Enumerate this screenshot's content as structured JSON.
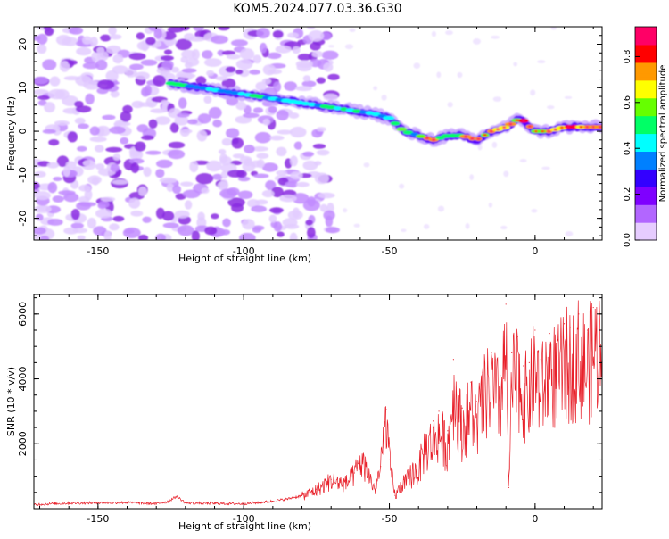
{
  "title": "KOM5.2024.077.03.36.G30",
  "chart_data": [
    {
      "type": "heatmap",
      "xlabel": "Height of straight line (km)",
      "ylabel": "Frequency (Hz)",
      "xlim": [
        -172,
        23
      ],
      "ylim": [
        -25,
        24
      ],
      "xticks": [
        -150,
        -100,
        -50,
        0
      ],
      "yticks": [
        -20,
        -10,
        0,
        10,
        20
      ],
      "xtick_labels": [
        "-150",
        "-100",
        "-50",
        "0"
      ],
      "ytick_labels": [
        "-20",
        "-10",
        "0",
        "10",
        "20"
      ],
      "colorbar": {
        "label": "Normalized spectral amplitude",
        "range": [
          0.0,
          0.93
        ],
        "ticks": [
          0.0,
          0.2,
          0.4,
          0.6,
          0.8
        ],
        "tick_labels": [
          "0.0",
          "0.2",
          "0.4",
          "0.6",
          "0.8"
        ],
        "colors": [
          "#ffffff",
          "#e6ccff",
          "#b266ff",
          "#7f00ff",
          "#3300ff",
          "#0080ff",
          "#00ffff",
          "#00ff66",
          "#66ff00",
          "#ffff00",
          "#ff9900",
          "#ff0000",
          "#ff0066"
        ]
      },
      "ridge": {
        "height_km": [
          -125,
          -115,
          -105,
          -95,
          -85,
          -75,
          -65,
          -55,
          -50,
          -45,
          -40,
          -35,
          -30,
          -25,
          -20,
          -15,
          -10,
          -5,
          0,
          5,
          10,
          15,
          20,
          23
        ],
        "frequency_hz": [
          11,
          10,
          9,
          8,
          7,
          6,
          5,
          4,
          3,
          0,
          -1,
          -2,
          -1,
          -1,
          -2,
          0,
          1,
          3,
          0,
          0,
          1,
          1,
          1,
          1
        ],
        "amplitude": [
          0.5,
          0.45,
          0.45,
          0.5,
          0.45,
          0.5,
          0.55,
          0.45,
          0.5,
          0.6,
          0.5,
          0.85,
          0.55,
          0.7,
          0.75,
          0.85,
          0.75,
          0.8,
          0.85,
          0.8,
          0.8,
          0.9,
          0.85,
          0.8
        ]
      },
      "noise_region_km": [
        -172,
        -75
      ]
    },
    {
      "type": "line",
      "xlabel": "Height of straight line (km)",
      "ylabel": "SNR (10 * v/v)",
      "xlim": [
        -172,
        23
      ],
      "ylim": [
        0,
        6600
      ],
      "xticks": [
        -150,
        -100,
        -50,
        0
      ],
      "yticks": [
        2000,
        4000,
        6000
      ],
      "xtick_labels": [
        "-150",
        "-100",
        "-50",
        "0"
      ],
      "ytick_labels": [
        "2000",
        "4000",
        "6000"
      ],
      "color": "#e8202a",
      "series": [
        {
          "x": [
            -172,
            -160,
            -150,
            -140,
            -130,
            -126,
            -123,
            -120,
            -110,
            -100,
            -90,
            -85,
            -80,
            -75,
            -70,
            -65,
            -62,
            -60,
            -58,
            -55,
            -53,
            -52,
            -51,
            -50,
            -48,
            -45,
            -42,
            -40,
            -38,
            -35,
            -33,
            -30,
            -28,
            -25,
            -22,
            -20,
            -18,
            -15,
            -12,
            -10,
            -9,
            -8,
            -6,
            -4,
            -2,
            0,
            2,
            5,
            8,
            10,
            12,
            15,
            18,
            20,
            23
          ],
          "y": [
            130,
            170,
            180,
            190,
            150,
            220,
            380,
            180,
            160,
            150,
            230,
            300,
            400,
            600,
            900,
            800,
            1100,
            1500,
            1300,
            600,
            1300,
            2200,
            3050,
            1500,
            400,
            900,
            1400,
            1500,
            2300,
            2700,
            3000,
            2400,
            4600,
            3100,
            3900,
            3300,
            4200,
            4800,
            4100,
            6300,
            650,
            4800,
            5300,
            4400,
            4500,
            5500,
            4600,
            5400,
            5200,
            5700,
            5600,
            6000,
            5500,
            6200,
            6450
          ]
        }
      ]
    }
  ]
}
